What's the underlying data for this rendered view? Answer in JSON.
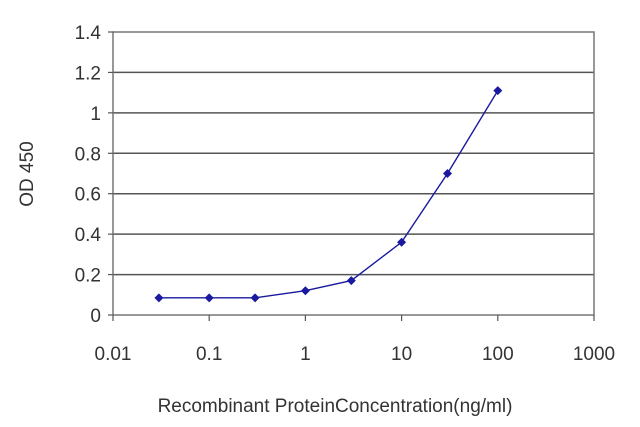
{
  "chart_data": {
    "type": "line",
    "title": "",
    "xlabel": "Recombinant ProteinConcentration(ng/ml)",
    "ylabel": "OD 450",
    "x_scale": "log",
    "xlim": [
      0.01,
      1000
    ],
    "ylim": [
      0,
      1.4
    ],
    "x_ticks": [
      "0.01",
      "0.1",
      "1",
      "10",
      "100",
      "1000"
    ],
    "y_ticks": [
      "0",
      "0.2",
      "0.4",
      "0.6",
      "0.8",
      "1",
      "1.2",
      "1.4"
    ],
    "grid": "horizontal",
    "legend": "none",
    "series": [
      {
        "color": "#1a1aa0",
        "marker": "diamond",
        "points": [
          {
            "x": 0.03,
            "y": 0.085
          },
          {
            "x": 0.1,
            "y": 0.085
          },
          {
            "x": 0.3,
            "y": 0.085
          },
          {
            "x": 1,
            "y": 0.12
          },
          {
            "x": 3,
            "y": 0.17
          },
          {
            "x": 10,
            "y": 0.36
          },
          {
            "x": 30,
            "y": 0.7
          },
          {
            "x": 100,
            "y": 1.11
          }
        ]
      }
    ]
  }
}
